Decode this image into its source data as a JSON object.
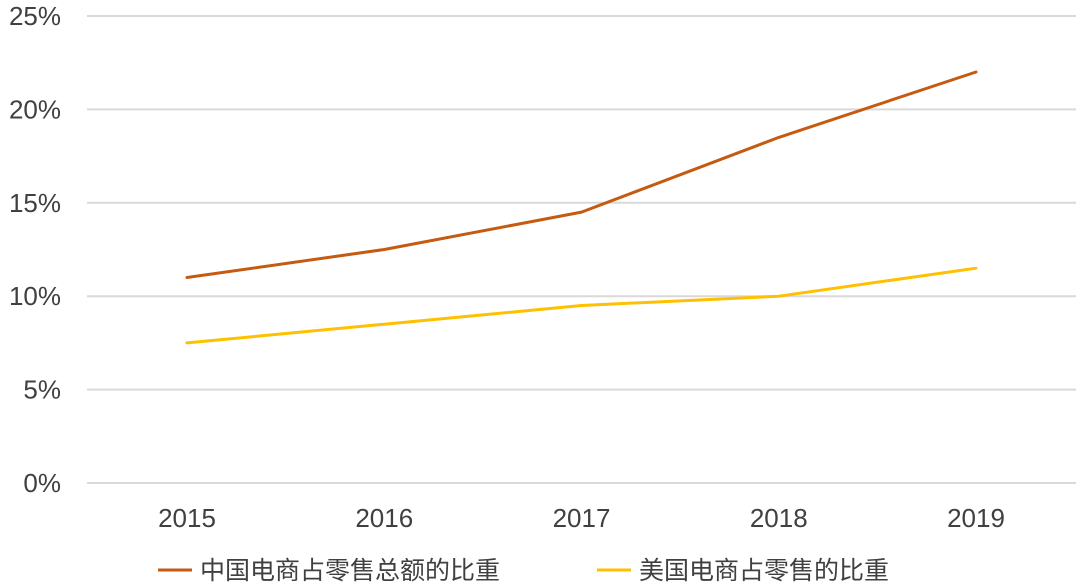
{
  "chart_data": {
    "type": "line",
    "title": "",
    "xlabel": "",
    "ylabel": "",
    "categories": [
      "2015",
      "2016",
      "2017",
      "2018",
      "2019"
    ],
    "ylim": [
      0,
      25
    ],
    "yticks": [
      0,
      5,
      10,
      15,
      20,
      25
    ],
    "ytick_labels": [
      "0%",
      "5%",
      "10%",
      "15%",
      "20%",
      "25%"
    ],
    "grid": "horizontal",
    "legend_position": "bottom",
    "series": [
      {
        "name": "中国电商占零售总额的比重",
        "color": "#C55A11",
        "values": [
          11,
          12.5,
          14.5,
          18.5,
          22
        ]
      },
      {
        "name": "美国电商占零售的比重",
        "color": "#FFC000",
        "values": [
          7.5,
          8.5,
          9.5,
          10,
          11.5
        ]
      }
    ]
  }
}
